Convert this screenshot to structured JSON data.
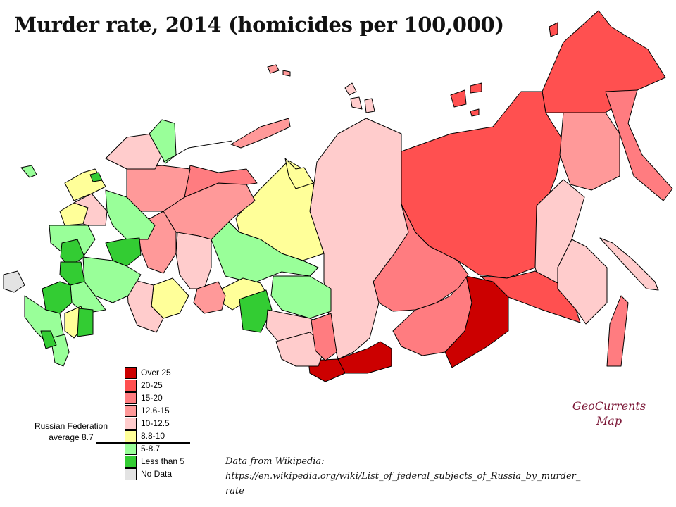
{
  "title": "Murder rate, 2014 (homicides per 100,000)",
  "legend": [
    {
      "label": "Over  25",
      "color": "#cc0000"
    },
    {
      "label": "20-25",
      "color": "#ff5050"
    },
    {
      "label": "15-20",
      "color": "#ff7c80"
    },
    {
      "label": "12.6-15",
      "color": "#ff9999"
    },
    {
      "label": "10-12.5",
      "color": "#ffcccc"
    },
    {
      "label": "8.8-10",
      "color": "#ffff99"
    },
    {
      "label": "5-8.7",
      "color": "#99ff99"
    },
    {
      "label": "Less than 5",
      "color": "#33cc33"
    },
    {
      "label": "No Data",
      "color": "#e3e3e3"
    }
  ],
  "average": {
    "line1": "Russian Federation",
    "line2": "average  8.7"
  },
  "brand": {
    "line1": "GeoCurrents",
    "line2": "Map"
  },
  "source": {
    "line1": "Data from Wikipedia:",
    "line2": "https://en.wikipedia.org/wiki/List_of_federal_subjects_of_Russia_by_murder_",
    "line3": "rate"
  }
}
